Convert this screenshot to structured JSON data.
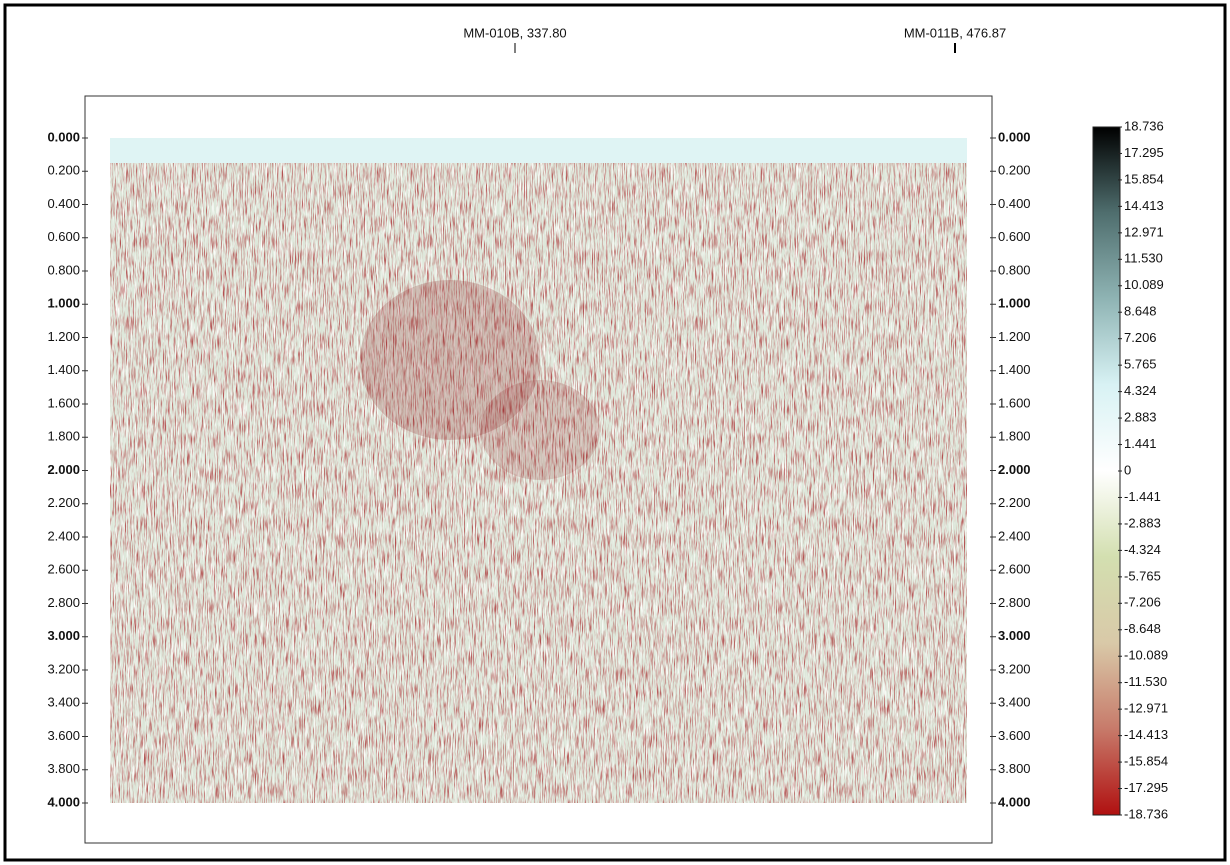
{
  "chart_data": {
    "type": "seismic",
    "annotations": [
      "MM-010B, 337.80",
      "MM-011B, 476.87"
    ],
    "ylim": [
      0,
      4
    ],
    "yticks": [
      {
        "value": 0,
        "label": "0.000"
      },
      {
        "value": 0.2,
        "label": "0.200"
      },
      {
        "value": 0.4,
        "label": "0.400"
      },
      {
        "value": 0.6,
        "label": "0.600"
      },
      {
        "value": 0.8,
        "label": "0.800"
      },
      {
        "value": 1,
        "label": "1.000"
      },
      {
        "value": 1.2,
        "label": "1.200"
      },
      {
        "value": 1.4,
        "label": "1.400"
      },
      {
        "value": 1.6,
        "label": "1.600"
      },
      {
        "value": 1.8,
        "label": "1.800"
      },
      {
        "value": 2,
        "label": "2.000"
      },
      {
        "value": 2.2,
        "label": "2.200"
      },
      {
        "value": 2.4,
        "label": "2.400"
      },
      {
        "value": 2.6,
        "label": "2.600"
      },
      {
        "value": 2.8,
        "label": "2.800"
      },
      {
        "value": 3,
        "label": "3.000"
      },
      {
        "value": 3.2,
        "label": "3.200"
      },
      {
        "value": 3.4,
        "label": "3.400"
      },
      {
        "value": 3.6,
        "label": "3.600"
      },
      {
        "value": 3.8,
        "label": "3.800"
      },
      {
        "value": 4,
        "label": "4.000"
      }
    ],
    "colorbar": {
      "lim": [
        -18.736,
        18.736
      ],
      "colors": [
        "#b01010",
        "#c77a6a",
        "#d9c9a8",
        "#d3dfb0",
        "#ffffff",
        "#d8f2f4",
        "#8fb4b4",
        "#4f6e6e",
        "#000000"
      ],
      "ticks": [
        18.736,
        17.295,
        15.854,
        14.413,
        12.971,
        {
          "value": 11.53,
          "label": "11.530"
        },
        10.089,
        8.648,
        7.206,
        5.765,
        4.324,
        2.883,
        1.441,
        0,
        -1.441,
        -2.883,
        -4.324,
        -5.765,
        -7.206,
        -8.648,
        -10.089,
        {
          "value": -11.53,
          "label": "-11.530"
        },
        -12.971,
        -14.413,
        -15.854,
        -17.295,
        -18.736
      ]
    }
  }
}
